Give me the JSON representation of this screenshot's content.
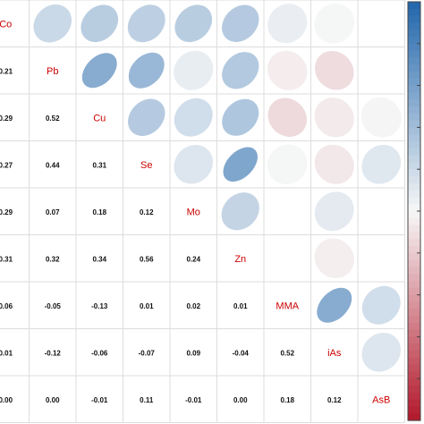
{
  "chart_data": {
    "type": "heatmap",
    "variables": [
      "Co",
      "Pb",
      "Cu",
      "Se",
      "Mo",
      "Zn",
      "MMA",
      "iAs",
      "AsB"
    ],
    "lower_values": [
      [
        "",
        "",
        "",
        "",
        "",
        "",
        "",
        "",
        ""
      ],
      [
        "0.21",
        "",
        "",
        "",
        "",
        "",
        "",
        "",
        ""
      ],
      [
        "0.29",
        "0.52",
        "",
        "",
        "",
        "",
        "",
        "",
        ""
      ],
      [
        "0.27",
        "0.44",
        "0.31",
        "",
        "",
        "",
        "",
        "",
        ""
      ],
      [
        "0.29",
        "0.07",
        "0.18",
        "0.12",
        "",
        "",
        "",
        "",
        ""
      ],
      [
        "0.31",
        "0.32",
        "0.34",
        "0.56",
        "0.24",
        "",
        "",
        "",
        ""
      ],
      [
        "0.06",
        "-0.05",
        "-0.13",
        "0.01",
        "0.02",
        "0.01",
        "",
        "",
        ""
      ],
      [
        "0.01",
        "-0.12",
        "-0.06",
        "-0.07",
        "0.09",
        "-0.04",
        "0.52",
        "",
        ""
      ],
      [
        "0.00",
        "0.00",
        "-0.01",
        "0.11",
        "-0.01",
        "0.00",
        "0.18",
        "0.12",
        ""
      ]
    ],
    "upper_ellipses": [
      {
        "row": 0,
        "col": 1,
        "value": 0.21
      },
      {
        "row": 0,
        "col": 2,
        "value": 0.29
      },
      {
        "row": 0,
        "col": 3,
        "value": 0.27
      },
      {
        "row": 0,
        "col": 4,
        "value": 0.29
      },
      {
        "row": 0,
        "col": 5,
        "value": 0.31
      },
      {
        "row": 0,
        "col": 6,
        "value": 0.06
      },
      {
        "row": 0,
        "col": 7,
        "value": 0.01
      },
      {
        "row": 1,
        "col": 2,
        "value": 0.52
      },
      {
        "row": 1,
        "col": 3,
        "value": 0.44
      },
      {
        "row": 1,
        "col": 4,
        "value": 0.07
      },
      {
        "row": 1,
        "col": 5,
        "value": 0.32
      },
      {
        "row": 1,
        "col": 6,
        "value": -0.05
      },
      {
        "row": 1,
        "col": 7,
        "value": -0.12
      },
      {
        "row": 2,
        "col": 3,
        "value": 0.31
      },
      {
        "row": 2,
        "col": 4,
        "value": 0.18
      },
      {
        "row": 2,
        "col": 5,
        "value": 0.34
      },
      {
        "row": 2,
        "col": 6,
        "value": -0.13
      },
      {
        "row": 2,
        "col": 7,
        "value": -0.06
      },
      {
        "row": 2,
        "col": 8,
        "value": -0.01
      },
      {
        "row": 3,
        "col": 4,
        "value": 0.12
      },
      {
        "row": 3,
        "col": 5,
        "value": 0.56
      },
      {
        "row": 3,
        "col": 6,
        "value": 0.01
      },
      {
        "row": 3,
        "col": 7,
        "value": -0.07
      },
      {
        "row": 3,
        "col": 8,
        "value": 0.11
      },
      {
        "row": 4,
        "col": 5,
        "value": 0.24
      },
      {
        "row": 4,
        "col": 7,
        "value": 0.09
      },
      {
        "row": 5,
        "col": 7,
        "value": -0.04
      },
      {
        "row": 6,
        "col": 7,
        "value": 0.52
      },
      {
        "row": 6,
        "col": 8,
        "value": 0.18
      },
      {
        "row": 7,
        "col": 8,
        "value": 0.12
      }
    ],
    "color_scale": {
      "negative": "#b2182b",
      "neutral": "#f7f7f7",
      "positive": "#2166ac"
    },
    "diagonal_label_color": "#cc0000",
    "value_range": [
      -1,
      1
    ]
  }
}
